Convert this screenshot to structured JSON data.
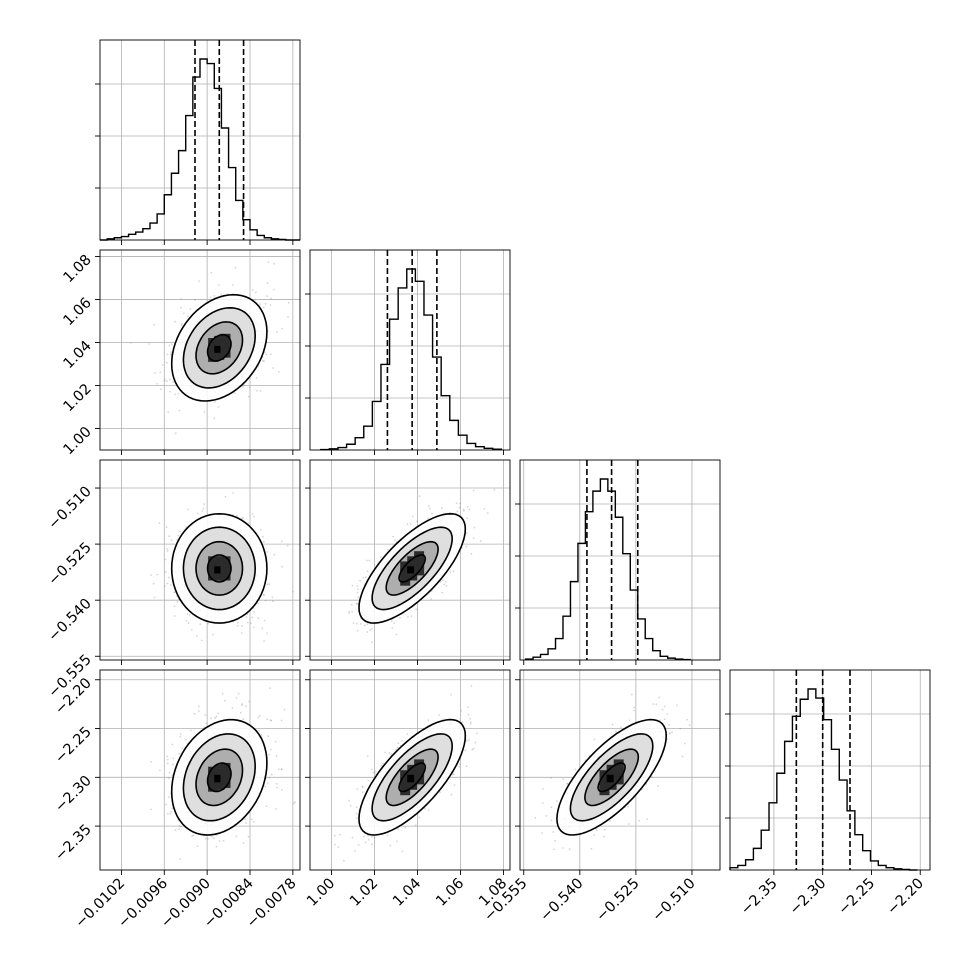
{
  "chart_data": {
    "type": "corner",
    "parameters": [
      {
        "range": [
          -0.0105,
          -0.0077
        ],
        "ticks": [
          -0.0102,
          -0.0096,
          -0.009,
          -0.0084,
          -0.0078
        ],
        "tick_labels": [
          "−0.0102",
          "−0.0096",
          "−0.0090",
          "−0.0084",
          "−0.0078"
        ],
        "quantiles": [
          -0.00917,
          -0.00883,
          -0.00849
        ],
        "marginal": {
          "bin_edges": [
            -0.0105,
            -0.0104,
            -0.0103,
            -0.0102,
            -0.0101,
            -0.01,
            -0.0099,
            -0.0098,
            -0.0097,
            -0.0096,
            -0.0095,
            -0.0094,
            -0.0093,
            -0.0092,
            -0.0091,
            -0.009,
            -0.0089,
            -0.0088,
            -0.0087,
            -0.0086,
            -0.0085,
            -0.0084,
            -0.0083,
            -0.0082,
            -0.0081,
            -0.008,
            -0.0079,
            -0.0078,
            -0.0077
          ],
          "counts": [
            0,
            2,
            4,
            6,
            10,
            14,
            20,
            30,
            46,
            80,
            118,
            158,
            220,
            288,
            320,
            312,
            268,
            198,
            128,
            70,
            36,
            18,
            8,
            4,
            2,
            1,
            0,
            0
          ]
        }
      },
      {
        "range": [
          0.99,
          1.083
        ],
        "ticks": [
          1.0,
          1.02,
          1.04,
          1.06,
          1.08
        ],
        "tick_labels": [
          "1.00",
          "1.02",
          "1.04",
          "1.06",
          "1.08"
        ],
        "quantiles": [
          1.026,
          1.0375,
          1.049
        ],
        "marginal": {
          "bin_edges": [
            0.995,
            0.999,
            1.003,
            1.007,
            1.011,
            1.015,
            1.019,
            1.023,
            1.027,
            1.031,
            1.035,
            1.039,
            1.043,
            1.047,
            1.051,
            1.055,
            1.059,
            1.063,
            1.067,
            1.071,
            1.075,
            1.079
          ],
          "counts": [
            1,
            3,
            6,
            14,
            30,
            58,
            118,
            208,
            318,
            394,
            440,
            410,
            328,
            226,
            132,
            72,
            36,
            16,
            8,
            4,
            2
          ]
        }
      },
      {
        "range": [
          -0.556,
          -0.5025
        ],
        "ticks": [
          -0.555,
          -0.54,
          -0.525,
          -0.51
        ],
        "tick_labels": [
          "−0.555",
          "−0.540",
          "−0.525",
          "−0.510"
        ],
        "quantiles": [
          -0.5381,
          -0.5315,
          -0.5245
        ],
        "marginal": {
          "bin_edges": [
            -0.5545,
            -0.5525,
            -0.5505,
            -0.5485,
            -0.5465,
            -0.5445,
            -0.5425,
            -0.5405,
            -0.5385,
            -0.5365,
            -0.5345,
            -0.5325,
            -0.5305,
            -0.5285,
            -0.5265,
            -0.5245,
            -0.5225,
            -0.5205,
            -0.5185,
            -0.5165,
            -0.5145,
            -0.5125,
            -0.5105
          ],
          "counts": [
            2,
            6,
            12,
            24,
            46,
            94,
            168,
            250,
            318,
            362,
            388,
            362,
            306,
            228,
            150,
            88,
            46,
            20,
            8,
            4,
            2,
            1
          ]
        }
      },
      {
        "range": [
          -2.395,
          -2.19
        ],
        "ticks": [
          -2.35,
          -2.3,
          -2.25,
          -2.2
        ],
        "tick_labels": [
          "−2.35",
          "−2.30",
          "−2.25",
          "−2.20"
        ],
        "quantiles": [
          -2.327,
          -2.3,
          -2.272
        ],
        "marginal": {
          "bin_edges": [
            -2.395,
            -2.387,
            -2.379,
            -2.371,
            -2.363,
            -2.355,
            -2.347,
            -2.339,
            -2.331,
            -2.323,
            -2.315,
            -2.307,
            -2.299,
            -2.291,
            -2.283,
            -2.275,
            -2.267,
            -2.259,
            -2.251,
            -2.243,
            -2.235,
            -2.227,
            -2.219,
            -2.211,
            -2.203
          ],
          "counts": [
            4,
            8,
            18,
            38,
            70,
            118,
            170,
            226,
            270,
            300,
            318,
            302,
            264,
            212,
            158,
            104,
            62,
            34,
            16,
            8,
            4,
            2,
            1,
            0
          ]
        }
      }
    ],
    "pairs": [
      {
        "x": 0,
        "y": 1,
        "mean": [
          -0.00883,
          1.0375
        ],
        "sd": [
          0.00031,
          0.0115
        ],
        "corr": 0.3,
        "contour_scale": [
          0.53,
          1.05,
          1.62,
          2.15
        ]
      },
      {
        "x": 0,
        "y": 2,
        "mean": [
          -0.00883,
          -0.5315
        ],
        "sd": [
          0.00031,
          0.0068
        ],
        "corr": 0.0,
        "contour_scale": [
          0.53,
          1.05,
          1.62,
          2.15
        ]
      },
      {
        "x": 1,
        "y": 2,
        "mean": [
          1.0375,
          -0.5315
        ],
        "sd": [
          0.0115,
          0.0068
        ],
        "corr": 0.72,
        "contour_scale": [
          0.53,
          1.05,
          1.62,
          2.15
        ]
      },
      {
        "x": 0,
        "y": 3,
        "mean": [
          -0.00883,
          -2.3
        ],
        "sd": [
          0.00031,
          0.0275
        ],
        "corr": 0.25,
        "contour_scale": [
          0.53,
          1.05,
          1.62,
          2.15
        ]
      },
      {
        "x": 1,
        "y": 3,
        "mean": [
          1.0375,
          -2.3
        ],
        "sd": [
          0.0115,
          0.0275
        ],
        "corr": 0.72,
        "contour_scale": [
          0.53,
          1.05,
          1.62,
          2.15
        ]
      },
      {
        "x": 2,
        "y": 3,
        "mean": [
          -0.5315,
          -2.3
        ],
        "sd": [
          0.0068,
          0.0275
        ],
        "corr": 0.72,
        "contour_scale": [
          0.53,
          1.05,
          1.62,
          2.15
        ]
      }
    ],
    "grid": true,
    "title": "",
    "xlabel": "",
    "ylabel": ""
  }
}
